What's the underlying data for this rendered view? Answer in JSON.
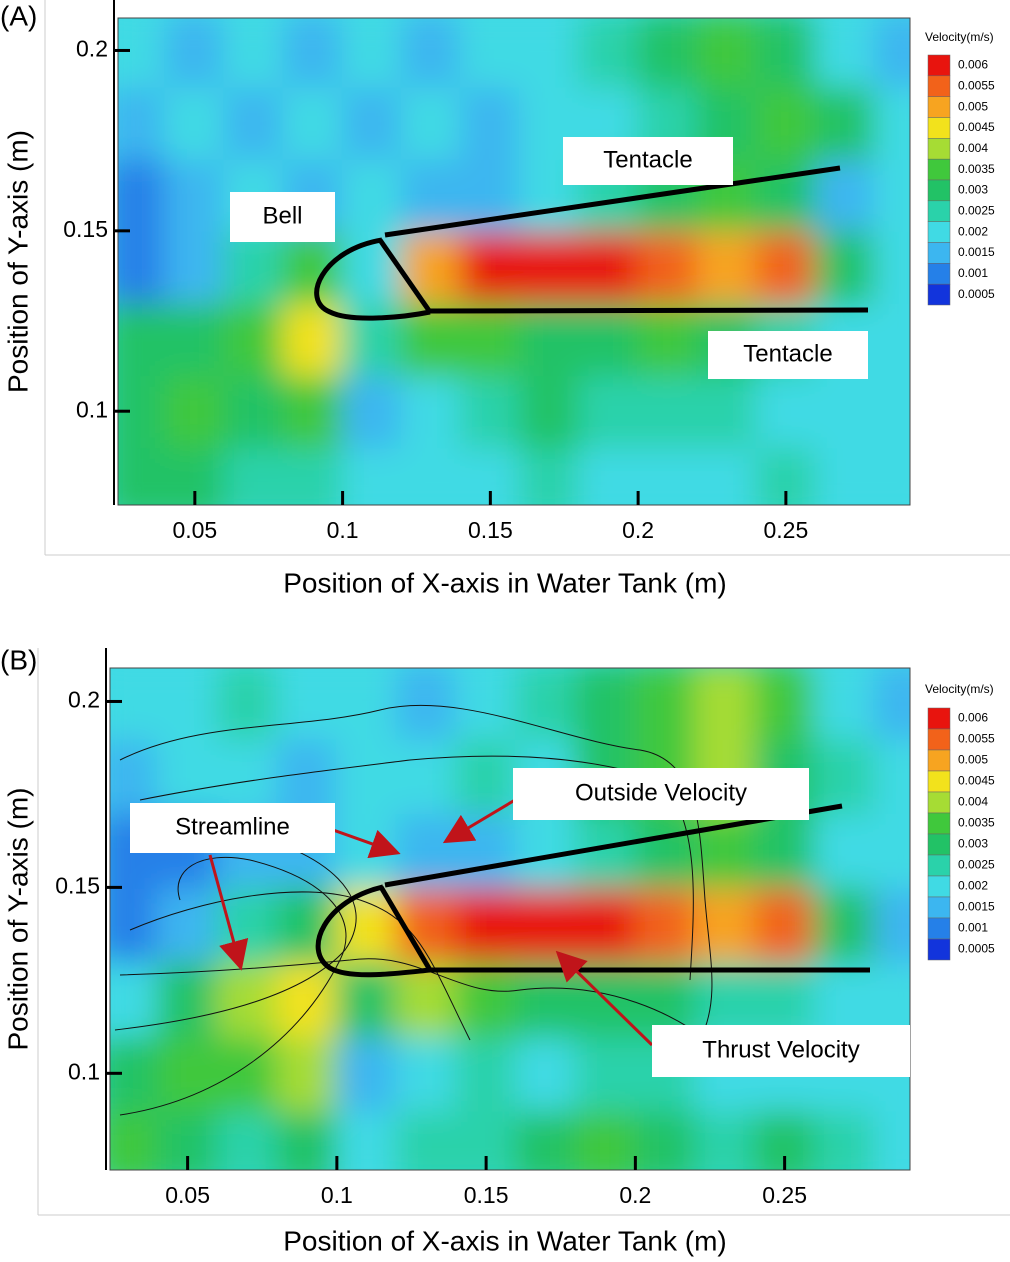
{
  "chart_data": [
    {
      "type": "heatmap",
      "panel_label": "(A)",
      "x_label": "Position of X-axis in Water Tank (m)",
      "y_label": "Position of Y-axis (m)",
      "xlim": [
        0.024,
        0.292
      ],
      "ylim": [
        0.074,
        0.209
      ],
      "xticks": [
        0.05,
        0.1,
        0.15,
        0.2,
        0.25
      ],
      "yticks": [
        0.1,
        0.15,
        0.2
      ],
      "x": [
        0.03,
        0.05,
        0.07,
        0.09,
        0.11,
        0.13,
        0.15,
        0.17,
        0.19,
        0.21,
        0.23,
        0.25,
        0.27,
        0.29
      ],
      "y": [
        0.08,
        0.1,
        0.12,
        0.14,
        0.16,
        0.18,
        0.2
      ],
      "z": [
        [
          0.003,
          0.003,
          0.0025,
          0.0025,
          0.002,
          0.002,
          0.002,
          0.0025,
          0.002,
          0.002,
          0.002,
          0.0025,
          0.002,
          0.002
        ],
        [
          0.003,
          0.0035,
          0.003,
          0.0035,
          0.0015,
          0.002,
          0.0025,
          0.003,
          0.0025,
          0.0025,
          0.0025,
          0.002,
          0.002,
          0.002
        ],
        [
          0.003,
          0.003,
          0.0035,
          0.0045,
          0.0025,
          0.0035,
          0.0035,
          0.003,
          0.003,
          0.0035,
          0.003,
          0.0025,
          0.002,
          0.002
        ],
        [
          0.001,
          0.0015,
          0.0025,
          0.0035,
          0.002,
          0.005,
          0.006,
          0.006,
          0.006,
          0.0055,
          0.005,
          0.0055,
          0.003,
          0.002
        ],
        [
          0.001,
          0.0015,
          0.002,
          0.0015,
          0.002,
          0.0015,
          0.0015,
          0.002,
          0.0025,
          0.003,
          0.0035,
          0.003,
          0.0015,
          0.002
        ],
        [
          0.0015,
          0.002,
          0.0015,
          0.002,
          0.0015,
          0.002,
          0.0015,
          0.002,
          0.002,
          0.0025,
          0.003,
          0.0035,
          0.003,
          0.002
        ],
        [
          0.002,
          0.0015,
          0.002,
          0.0015,
          0.002,
          0.0015,
          0.002,
          0.002,
          0.0025,
          0.003,
          0.0035,
          0.003,
          0.002,
          0.0015
        ]
      ],
      "colorbar": {
        "title": "Velocity(m/s)",
        "levels": [
          0.006,
          0.0055,
          0.005,
          0.0045,
          0.004,
          0.0035,
          0.003,
          0.0025,
          0.002,
          0.0015,
          0.001,
          0.0005
        ],
        "colors": [
          "#e8140e",
          "#f2621a",
          "#f7a420",
          "#f2e21c",
          "#a6dc34",
          "#40c83c",
          "#22c266",
          "#2ad2aa",
          "#40dae4",
          "#3cb6f0",
          "#2580e8",
          "#1234dc"
        ]
      },
      "annotations": [
        "Tentacle",
        "Bell",
        "Tentacle"
      ]
    },
    {
      "type": "heatmap",
      "panel_label": "(B)",
      "x_label": "Position of X-axis in Water Tank (m)",
      "y_label": "Position of Y-axis (m)",
      "xlim": [
        0.024,
        0.292
      ],
      "ylim": [
        0.074,
        0.209
      ],
      "xticks": [
        0.05,
        0.1,
        0.15,
        0.2,
        0.25
      ],
      "yticks": [
        0.1,
        0.15,
        0.2
      ],
      "x": [
        0.03,
        0.05,
        0.07,
        0.09,
        0.11,
        0.13,
        0.15,
        0.17,
        0.19,
        0.21,
        0.23,
        0.25,
        0.27,
        0.29
      ],
      "y": [
        0.08,
        0.1,
        0.12,
        0.14,
        0.16,
        0.18,
        0.2
      ],
      "z": [
        [
          0.0035,
          0.003,
          0.0025,
          0.003,
          0.002,
          0.0025,
          0.0025,
          0.003,
          0.0035,
          0.003,
          0.0025,
          0.003,
          0.0025,
          0.002
        ],
        [
          0.003,
          0.0035,
          0.0035,
          0.004,
          0.0015,
          0.002,
          0.0025,
          0.002,
          0.0025,
          0.0025,
          0.002,
          0.002,
          0.002,
          0.002
        ],
        [
          0.002,
          0.003,
          0.004,
          0.0045,
          0.003,
          0.004,
          0.0035,
          0.003,
          0.003,
          0.003,
          0.0025,
          0.0025,
          0.002,
          0.002
        ],
        [
          0.001,
          0.0015,
          0.0025,
          0.003,
          0.0045,
          0.0055,
          0.006,
          0.006,
          0.006,
          0.0055,
          0.005,
          0.0055,
          0.003,
          0.0015
        ],
        [
          0.001,
          0.001,
          0.0015,
          0.0015,
          0.002,
          0.0015,
          0.0015,
          0.002,
          0.0025,
          0.003,
          0.0035,
          0.003,
          0.002,
          0.002
        ],
        [
          0.0015,
          0.002,
          0.002,
          0.0015,
          0.002,
          0.002,
          0.0025,
          0.002,
          0.003,
          0.0035,
          0.004,
          0.003,
          0.0025,
          0.002
        ],
        [
          0.002,
          0.002,
          0.0025,
          0.002,
          0.002,
          0.0015,
          0.002,
          0.0025,
          0.003,
          0.0035,
          0.004,
          0.0035,
          0.002,
          0.0015
        ]
      ],
      "colorbar": {
        "title": "Velocity(m/s)",
        "levels": [
          0.006,
          0.0055,
          0.005,
          0.0045,
          0.004,
          0.0035,
          0.003,
          0.0025,
          0.002,
          0.0015,
          0.001,
          0.0005
        ],
        "colors": [
          "#e8140e",
          "#f2621a",
          "#f7a420",
          "#f2e21c",
          "#a6dc34",
          "#40c83c",
          "#22c266",
          "#2ad2aa",
          "#40dae4",
          "#3cb6f0",
          "#2580e8",
          "#1234dc"
        ]
      },
      "annotations": [
        "Streamline",
        "Outside Velocity",
        "Thrust Velocity"
      ]
    }
  ]
}
